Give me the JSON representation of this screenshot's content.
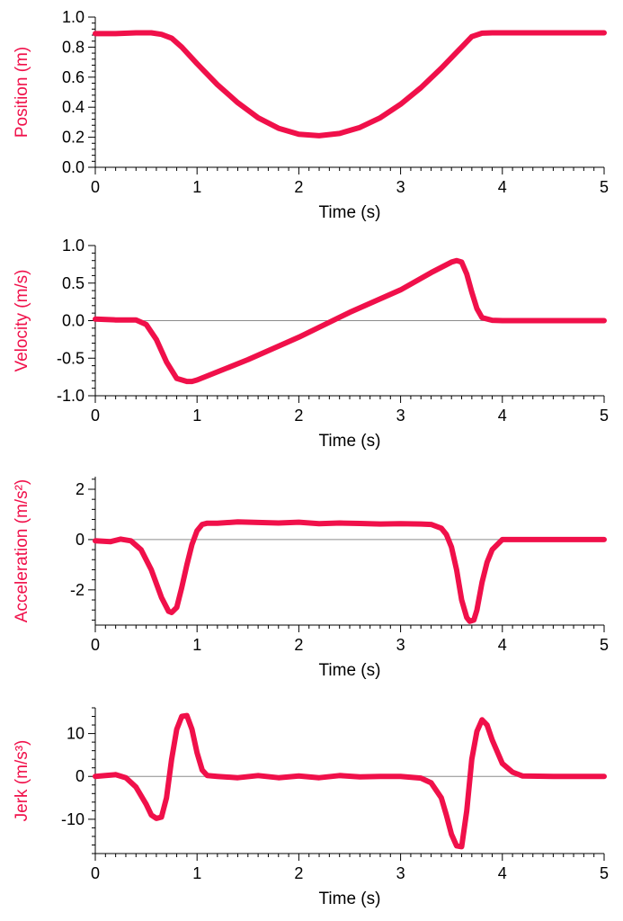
{
  "colors": {
    "series": "#f0104a",
    "axis": "#000000",
    "zero_line": "#8c8c8c",
    "background": "#ffffff"
  },
  "chart_data": [
    {
      "type": "line",
      "xlabel": "Time (s)",
      "ylabel": "Position (m)",
      "xlim": [
        0,
        5
      ],
      "ylim": [
        0,
        1.0
      ],
      "xticks": [
        "0",
        "1",
        "2",
        "3",
        "4",
        "5"
      ],
      "yticks": [
        "0.0",
        "0.2",
        "0.4",
        "0.6",
        "0.8",
        "1.0"
      ],
      "zero_line": false,
      "series": [
        {
          "x": [
            0,
            0.2,
            0.4,
            0.55,
            0.65,
            0.75,
            0.85,
            1.0,
            1.2,
            1.4,
            1.6,
            1.8,
            2.0,
            2.2,
            2.4,
            2.6,
            2.8,
            3.0,
            3.2,
            3.4,
            3.6,
            3.7,
            3.8,
            3.9,
            4.2,
            4.6,
            5.0
          ],
          "y": [
            0.89,
            0.89,
            0.895,
            0.895,
            0.885,
            0.86,
            0.8,
            0.69,
            0.55,
            0.43,
            0.33,
            0.26,
            0.22,
            0.21,
            0.225,
            0.265,
            0.33,
            0.42,
            0.53,
            0.66,
            0.8,
            0.87,
            0.893,
            0.895,
            0.895,
            0.895,
            0.895
          ]
        }
      ]
    },
    {
      "type": "line",
      "xlabel": "Time (s)",
      "ylabel": "Velocity (m/s)",
      "xlim": [
        0,
        5
      ],
      "ylim": [
        -1.0,
        1.0
      ],
      "xticks": [
        "0",
        "1",
        "2",
        "3",
        "4",
        "5"
      ],
      "yticks": [
        "-1.0",
        "-0.5",
        "0.0",
        "0.5",
        "1.0"
      ],
      "zero_line": true,
      "series": [
        {
          "x": [
            0,
            0.2,
            0.4,
            0.5,
            0.6,
            0.7,
            0.8,
            0.9,
            0.95,
            1.0,
            1.5,
            2.0,
            2.5,
            3.0,
            3.3,
            3.5,
            3.55,
            3.6,
            3.65,
            3.7,
            3.75,
            3.8,
            3.9,
            4.0,
            4.5,
            5.0
          ],
          "y": [
            0.02,
            0.01,
            0.01,
            -0.05,
            -0.25,
            -0.55,
            -0.77,
            -0.81,
            -0.81,
            -0.79,
            -0.52,
            -0.22,
            0.11,
            0.41,
            0.64,
            0.78,
            0.8,
            0.78,
            0.62,
            0.38,
            0.16,
            0.04,
            0.005,
            0.0,
            0.0,
            0.0
          ]
        }
      ]
    },
    {
      "type": "line",
      "xlabel": "Time (s)",
      "ylabel": "Acceleration (m/s²)",
      "xlim": [
        0,
        5
      ],
      "ylim": [
        -3.4,
        2.5
      ],
      "xticks": [
        "0",
        "1",
        "2",
        "3",
        "4",
        "5"
      ],
      "yticks": [
        "-2",
        "0",
        "2"
      ],
      "zero_line": true,
      "series": [
        {
          "x": [
            0,
            0.15,
            0.25,
            0.35,
            0.45,
            0.55,
            0.65,
            0.72,
            0.75,
            0.8,
            0.85,
            0.9,
            0.95,
            1.0,
            1.05,
            1.1,
            1.2,
            1.4,
            1.6,
            1.8,
            2.0,
            2.2,
            2.4,
            2.6,
            2.8,
            3.0,
            3.2,
            3.3,
            3.4,
            3.45,
            3.5,
            3.55,
            3.6,
            3.65,
            3.68,
            3.72,
            3.75,
            3.8,
            3.85,
            3.9,
            4.0,
            4.5,
            5.0
          ],
          "y": [
            -0.05,
            -0.08,
            0.02,
            -0.05,
            -0.4,
            -1.2,
            -2.3,
            -2.85,
            -2.9,
            -2.7,
            -1.9,
            -1.0,
            -0.2,
            0.35,
            0.6,
            0.65,
            0.65,
            0.7,
            0.68,
            0.66,
            0.69,
            0.63,
            0.66,
            0.64,
            0.62,
            0.63,
            0.62,
            0.6,
            0.45,
            0.2,
            -0.3,
            -1.2,
            -2.4,
            -3.1,
            -3.25,
            -3.2,
            -2.8,
            -1.7,
            -0.9,
            -0.4,
            0.0,
            0.0,
            0.0
          ]
        }
      ]
    },
    {
      "type": "line",
      "xlabel": "Time (s)",
      "ylabel": "Jerk (m/s³)",
      "xlim": [
        0,
        5
      ],
      "ylim": [
        -18,
        16
      ],
      "xticks": [
        "0",
        "1",
        "2",
        "3",
        "4",
        "5"
      ],
      "yticks": [
        "-10",
        "0",
        "10"
      ],
      "zero_line": true,
      "series": [
        {
          "x": [
            0,
            0.1,
            0.2,
            0.3,
            0.4,
            0.5,
            0.55,
            0.6,
            0.65,
            0.7,
            0.75,
            0.8,
            0.85,
            0.9,
            0.95,
            1.0,
            1.05,
            1.1,
            1.2,
            1.4,
            1.6,
            1.8,
            2.0,
            2.2,
            2.4,
            2.6,
            2.8,
            3.0,
            3.2,
            3.3,
            3.4,
            3.45,
            3.5,
            3.55,
            3.6,
            3.65,
            3.7,
            3.75,
            3.8,
            3.85,
            3.9,
            4.0,
            4.1,
            4.2,
            4.5,
            5.0
          ],
          "y": [
            0,
            0.2,
            0.4,
            -0.3,
            -2.5,
            -6.5,
            -9.0,
            -9.8,
            -9.5,
            -5.0,
            4.0,
            11.0,
            14.0,
            14.2,
            11.0,
            5.5,
            1.5,
            0.2,
            0.0,
            -0.3,
            0.2,
            -0.3,
            0.1,
            -0.3,
            0.2,
            -0.1,
            0.0,
            0.0,
            -0.4,
            -1.5,
            -5.0,
            -9.0,
            -13.5,
            -16.2,
            -16.4,
            -8.0,
            4.0,
            10.5,
            13.2,
            12.0,
            8.5,
            3.0,
            1.0,
            0.1,
            0.0,
            0.0
          ]
        }
      ]
    }
  ]
}
